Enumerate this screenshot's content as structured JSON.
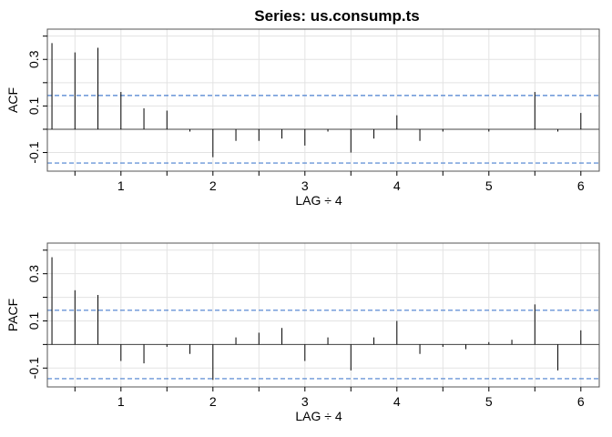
{
  "title": "Series:  us.consump.ts",
  "colors": {
    "grid": "#e3e3e3",
    "bound": "#4a7fcf",
    "bar": "#000000",
    "frame": "#555555"
  },
  "chart_data": [
    {
      "type": "bar",
      "ylabel": "ACF",
      "xlabel": "LAG ÷ 4",
      "xlim": [
        0.2,
        6.2
      ],
      "ylim": [
        -0.18,
        0.43
      ],
      "xticks": [
        1,
        2,
        3,
        4,
        5,
        6
      ],
      "yticks": [
        -0.1,
        0.1,
        0.3
      ],
      "ytick_labels": [
        "-0.1",
        "0.1",
        "0.3"
      ],
      "grid": true,
      "confidence_bounds": [
        0.145,
        -0.145
      ],
      "lags": [
        0.25,
        0.5,
        0.75,
        1.0,
        1.25,
        1.5,
        1.75,
        2.0,
        2.25,
        2.5,
        2.75,
        3.0,
        3.25,
        3.5,
        3.75,
        4.0,
        4.25,
        4.5,
        4.75,
        5.0,
        5.25,
        5.5,
        5.75,
        6.0
      ],
      "values": [
        0.37,
        0.33,
        0.35,
        0.16,
        0.09,
        0.08,
        -0.01,
        -0.12,
        -0.05,
        -0.05,
        -0.04,
        -0.07,
        -0.01,
        -0.1,
        -0.04,
        0.06,
        -0.05,
        -0.01,
        0.0,
        -0.01,
        0.0,
        0.16,
        -0.01,
        0.07
      ]
    },
    {
      "type": "bar",
      "ylabel": "PACF",
      "xlabel": "LAG ÷ 4",
      "xlim": [
        0.2,
        6.2
      ],
      "ylim": [
        -0.18,
        0.43
      ],
      "xticks": [
        1,
        2,
        3,
        4,
        5,
        6
      ],
      "yticks": [
        -0.1,
        0.1,
        0.3
      ],
      "ytick_labels": [
        "-0.1",
        "0.1",
        "0.3"
      ],
      "grid": true,
      "confidence_bounds": [
        0.145,
        -0.145
      ],
      "lags": [
        0.25,
        0.5,
        0.75,
        1.0,
        1.25,
        1.5,
        1.75,
        2.0,
        2.25,
        2.5,
        2.75,
        3.0,
        3.25,
        3.5,
        3.75,
        4.0,
        4.25,
        4.5,
        4.75,
        5.0,
        5.25,
        5.5,
        5.75,
        6.0
      ],
      "values": [
        0.37,
        0.23,
        0.21,
        -0.07,
        -0.08,
        -0.01,
        -0.04,
        -0.15,
        0.03,
        0.05,
        0.07,
        -0.07,
        0.03,
        -0.11,
        0.03,
        0.1,
        -0.04,
        -0.01,
        -0.02,
        0.01,
        0.02,
        0.17,
        -0.11,
        0.06
      ]
    }
  ]
}
